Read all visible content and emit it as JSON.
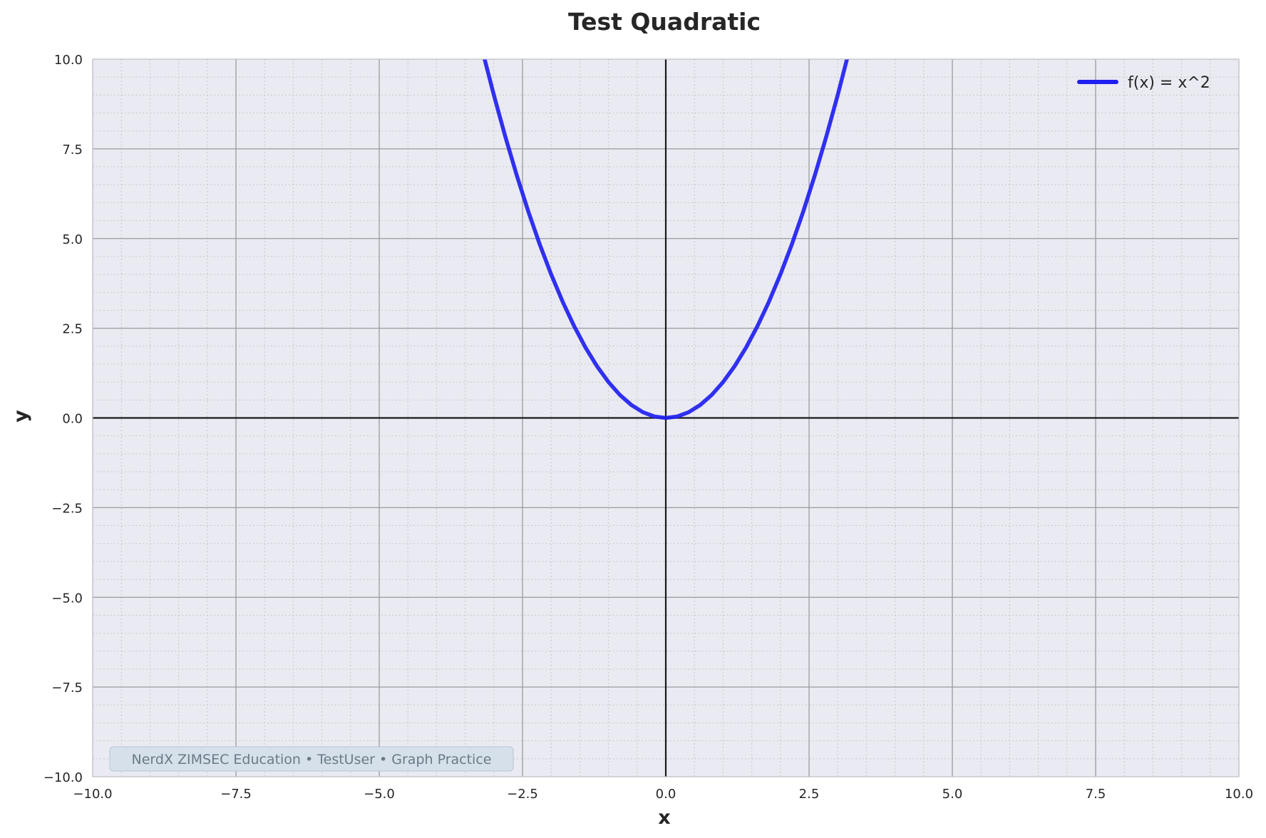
{
  "chart_data": {
    "type": "line",
    "title": "Test Quadratic",
    "xlabel": "x",
    "ylabel": "y",
    "xlim": [
      -10,
      10
    ],
    "ylim": [
      -10,
      10
    ],
    "x_ticks": [
      -10,
      -7.5,
      -5,
      -2.5,
      0,
      2.5,
      5,
      7.5,
      10
    ],
    "y_ticks": [
      -10,
      -7.5,
      -5,
      -2.5,
      0,
      2.5,
      5,
      7.5,
      10
    ],
    "x_tick_labels": [
      "−10.0",
      "−7.5",
      "−5.0",
      "−2.5",
      "0.0",
      "2.5",
      "5.0",
      "7.5",
      "10.0"
    ],
    "y_tick_labels": [
      "−10.0",
      "−7.5",
      "−5.0",
      "−2.5",
      "0.0",
      "2.5",
      "5.0",
      "7.5",
      "10.0"
    ],
    "grid": true,
    "minor_grid": true,
    "legend_position": "top-right",
    "series": [
      {
        "name": "f(x) = x^2",
        "expression": "x^2",
        "color": "#1f1ff0",
        "x": [
          -3.2,
          -3.0,
          -2.8,
          -2.6,
          -2.4,
          -2.2,
          -2.0,
          -1.8,
          -1.6,
          -1.4,
          -1.2,
          -1.0,
          -0.8,
          -0.6,
          -0.4,
          -0.2,
          0.0,
          0.2,
          0.4,
          0.6,
          0.8,
          1.0,
          1.2,
          1.4,
          1.6,
          1.8,
          2.0,
          2.2,
          2.4,
          2.6,
          2.8,
          3.0,
          3.2
        ],
        "y": [
          10.24,
          9.0,
          7.84,
          6.76,
          5.76,
          4.84,
          4.0,
          3.24,
          2.56,
          1.96,
          1.44,
          1.0,
          0.64,
          0.36,
          0.16,
          0.04,
          0.0,
          0.04,
          0.16,
          0.36,
          0.64,
          1.0,
          1.44,
          1.96,
          2.56,
          3.24,
          4.0,
          4.84,
          5.76,
          6.76,
          7.84,
          9.0,
          10.24
        ]
      }
    ],
    "annotation": "NerdX ZIMSEC Education • TestUser • Graph Practice",
    "colors": {
      "plot_background": "#eaeaf2",
      "major_grid": "#9a9aa0",
      "minor_grid": "#c6c6cc",
      "axis_line": "#1a1a1a",
      "series": "#1f1ff0",
      "annotation_box": "#d5e0ea"
    }
  }
}
